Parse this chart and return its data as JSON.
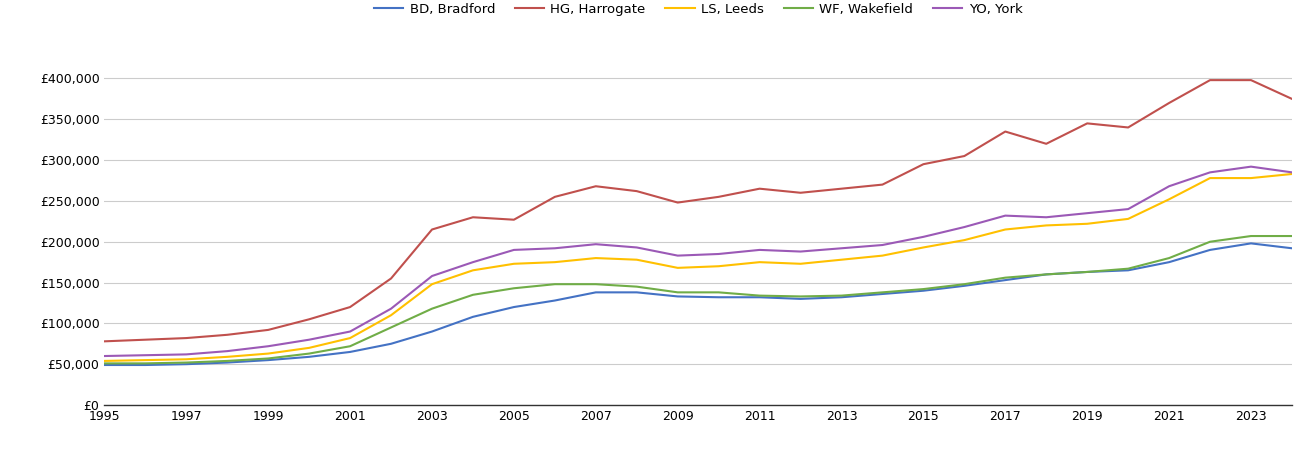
{
  "years": [
    1995,
    1996,
    1997,
    1998,
    1999,
    2000,
    2001,
    2002,
    2003,
    2004,
    2005,
    2006,
    2007,
    2008,
    2009,
    2010,
    2011,
    2012,
    2013,
    2014,
    2015,
    2016,
    2017,
    2018,
    2019,
    2020,
    2021,
    2022,
    2023,
    2024
  ],
  "series": {
    "BD, Bradford": {
      "color": "#4472C4",
      "values": [
        49000,
        49000,
        50000,
        52000,
        55000,
        59000,
        65000,
        75000,
        90000,
        108000,
        120000,
        128000,
        138000,
        138000,
        133000,
        132000,
        132000,
        130000,
        132000,
        136000,
        140000,
        146000,
        153000,
        160000,
        163000,
        165000,
        175000,
        190000,
        198000,
        192000
      ]
    },
    "HG, Harrogate": {
      "color": "#C0504D",
      "values": [
        78000,
        80000,
        82000,
        86000,
        92000,
        105000,
        120000,
        155000,
        215000,
        230000,
        227000,
        255000,
        268000,
        262000,
        248000,
        255000,
        265000,
        260000,
        265000,
        270000,
        295000,
        305000,
        335000,
        320000,
        345000,
        340000,
        370000,
        398000,
        398000,
        375000
      ]
    },
    "LS, Leeds": {
      "color": "#FFC000",
      "values": [
        54000,
        55000,
        56000,
        59000,
        63000,
        70000,
        82000,
        110000,
        148000,
        165000,
        173000,
        175000,
        180000,
        178000,
        168000,
        170000,
        175000,
        173000,
        178000,
        183000,
        193000,
        202000,
        215000,
        220000,
        222000,
        228000,
        252000,
        278000,
        278000,
        283000
      ]
    },
    "WF, Wakefield": {
      "color": "#70AD47",
      "values": [
        51000,
        51000,
        52000,
        54000,
        57000,
        63000,
        72000,
        95000,
        118000,
        135000,
        143000,
        148000,
        148000,
        145000,
        138000,
        138000,
        134000,
        133000,
        134000,
        138000,
        142000,
        148000,
        156000,
        160000,
        163000,
        167000,
        180000,
        200000,
        207000,
        207000
      ]
    },
    "YO, York": {
      "color": "#9B59B6",
      "values": [
        60000,
        61000,
        62000,
        66000,
        72000,
        80000,
        90000,
        118000,
        158000,
        175000,
        190000,
        192000,
        197000,
        193000,
        183000,
        185000,
        190000,
        188000,
        192000,
        196000,
        206000,
        218000,
        232000,
        230000,
        235000,
        240000,
        268000,
        285000,
        292000,
        285000
      ]
    }
  },
  "ylim": [
    0,
    430000
  ],
  "yticks": [
    0,
    50000,
    100000,
    150000,
    200000,
    250000,
    300000,
    350000,
    400000
  ],
  "xticks": [
    1995,
    1997,
    1999,
    2001,
    2003,
    2005,
    2007,
    2009,
    2011,
    2013,
    2015,
    2017,
    2019,
    2021,
    2023
  ],
  "background_color": "#ffffff",
  "grid_color": "#cccccc"
}
